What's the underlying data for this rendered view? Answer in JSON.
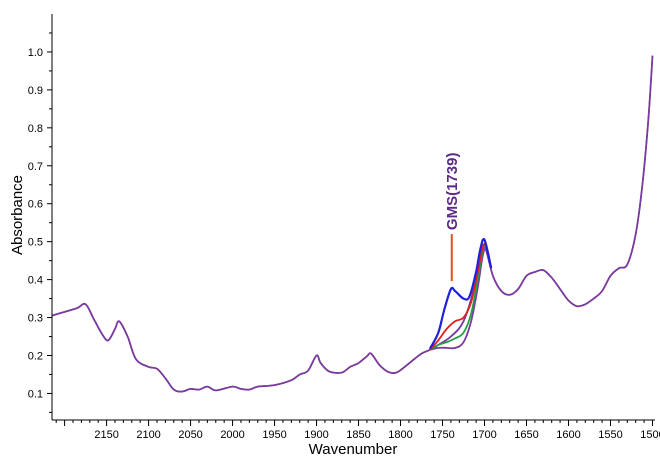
{
  "chart_data": {
    "type": "line",
    "title": "",
    "xlabel": "Wavenumber",
    "ylabel": "Absorbance",
    "xlim": [
      2215,
      1497
    ],
    "ylim": [
      0.03,
      1.1
    ],
    "x_reversed": true,
    "grid": false,
    "legend": "none",
    "x_ticks": [
      2150,
      2100,
      2050,
      2000,
      1950,
      1900,
      1850,
      1800,
      1750,
      1700,
      1650,
      1600,
      1550,
      1500
    ],
    "y_ticks": [
      0.1,
      0.2,
      0.3,
      0.4,
      0.5,
      0.6,
      0.7,
      0.8,
      0.9,
      1.0
    ],
    "x_tick_labels": [
      "2150",
      "2100",
      "2050",
      "2000",
      "1950",
      "1900",
      "1850",
      "1800",
      "1750",
      "1700",
      "1650",
      "1600",
      "1550",
      "1500"
    ],
    "y_tick_labels": [
      "0.1",
      "0.2",
      "0.3",
      "0.4",
      "0.5",
      "0.6",
      "0.7",
      "0.8",
      "0.9",
      "1.0"
    ],
    "base_points": [
      [
        2215,
        0.305
      ],
      [
        2200,
        0.315
      ],
      [
        2185,
        0.325
      ],
      [
        2175,
        0.335
      ],
      [
        2165,
        0.295
      ],
      [
        2155,
        0.255
      ],
      [
        2148,
        0.24
      ],
      [
        2140,
        0.27
      ],
      [
        2135,
        0.29
      ],
      [
        2125,
        0.25
      ],
      [
        2115,
        0.19
      ],
      [
        2100,
        0.17
      ],
      [
        2090,
        0.165
      ],
      [
        2080,
        0.14
      ],
      [
        2070,
        0.11
      ],
      [
        2060,
        0.105
      ],
      [
        2050,
        0.112
      ],
      [
        2040,
        0.11
      ],
      [
        2030,
        0.118
      ],
      [
        2020,
        0.108
      ],
      [
        2000,
        0.118
      ],
      [
        1990,
        0.112
      ],
      [
        1980,
        0.11
      ],
      [
        1970,
        0.118
      ],
      [
        1950,
        0.122
      ],
      [
        1930,
        0.135
      ],
      [
        1920,
        0.15
      ],
      [
        1910,
        0.16
      ],
      [
        1900,
        0.2
      ],
      [
        1895,
        0.18
      ],
      [
        1885,
        0.158
      ],
      [
        1870,
        0.155
      ],
      [
        1860,
        0.17
      ],
      [
        1850,
        0.18
      ],
      [
        1840,
        0.198
      ],
      [
        1835,
        0.205
      ],
      [
        1825,
        0.175
      ],
      [
        1815,
        0.157
      ],
      [
        1805,
        0.155
      ],
      [
        1795,
        0.17
      ],
      [
        1785,
        0.188
      ],
      [
        1775,
        0.205
      ],
      [
        1765,
        0.215
      ],
      [
        1755,
        0.228
      ],
      [
        1740,
        0.25
      ],
      [
        1725,
        0.29
      ],
      [
        1712,
        0.38
      ],
      [
        1705,
        0.46
      ],
      [
        1700,
        0.49
      ],
      [
        1690,
        0.41
      ],
      [
        1680,
        0.37
      ],
      [
        1670,
        0.36
      ],
      [
        1660,
        0.375
      ],
      [
        1650,
        0.41
      ],
      [
        1640,
        0.42
      ],
      [
        1630,
        0.425
      ],
      [
        1620,
        0.405
      ],
      [
        1610,
        0.375
      ],
      [
        1600,
        0.345
      ],
      [
        1590,
        0.33
      ],
      [
        1580,
        0.335
      ],
      [
        1570,
        0.35
      ],
      [
        1560,
        0.37
      ],
      [
        1550,
        0.41
      ],
      [
        1540,
        0.43
      ],
      [
        1530,
        0.44
      ],
      [
        1520,
        0.52
      ],
      [
        1512,
        0.65
      ],
      [
        1505,
        0.82
      ],
      [
        1500,
        0.99
      ]
    ],
    "series": [
      {
        "color": "#1f1fe0",
        "points": [
          [
            1765,
            0.218
          ],
          [
            1755,
            0.26
          ],
          [
            1748,
            0.32
          ],
          [
            1740,
            0.375
          ],
          [
            1735,
            0.37
          ],
          [
            1725,
            0.35
          ],
          [
            1718,
            0.355
          ],
          [
            1710,
            0.42
          ],
          [
            1705,
            0.48
          ],
          [
            1700,
            0.505
          ],
          [
            1692,
            0.43
          ]
        ]
      },
      {
        "color": "#e02020",
        "points": [
          [
            1765,
            0.215
          ],
          [
            1755,
            0.24
          ],
          [
            1745,
            0.27
          ],
          [
            1735,
            0.29
          ],
          [
            1725,
            0.3
          ],
          [
            1716,
            0.34
          ],
          [
            1708,
            0.42
          ],
          [
            1700,
            0.495
          ],
          [
            1692,
            0.43
          ]
        ]
      },
      {
        "color": "#20a040",
        "points": [
          [
            1765,
            0.215
          ],
          [
            1755,
            0.228
          ],
          [
            1745,
            0.235
          ],
          [
            1735,
            0.245
          ],
          [
            1725,
            0.26
          ],
          [
            1716,
            0.31
          ],
          [
            1708,
            0.4
          ],
          [
            1700,
            0.49
          ],
          [
            1692,
            0.43
          ]
        ]
      },
      {
        "color": "#7a3aa0",
        "points": [
          [
            1765,
            0.215
          ],
          [
            1755,
            0.22
          ],
          [
            1745,
            0.22
          ],
          [
            1735,
            0.22
          ],
          [
            1725,
            0.235
          ],
          [
            1716,
            0.29
          ],
          [
            1708,
            0.38
          ],
          [
            1700,
            0.48
          ],
          [
            1692,
            0.43
          ]
        ]
      }
    ],
    "main_color": "#7a3aa0",
    "annotations": [
      {
        "text": "GMS(1739)",
        "x": 1739,
        "y_from": 0.375,
        "y_to": 0.52,
        "color": "#5b2a86",
        "line_color": "#e05020"
      }
    ]
  }
}
